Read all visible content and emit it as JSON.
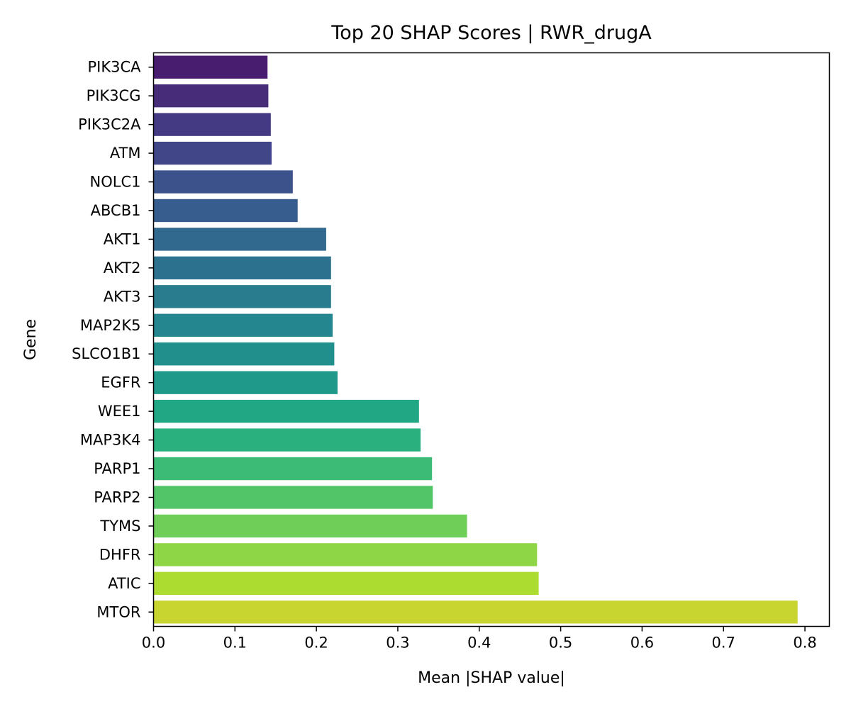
{
  "chart_data": {
    "type": "bar",
    "orientation": "horizontal",
    "title": "Top 20 SHAP Scores | RWR_drugA",
    "xlabel": "Mean |SHAP value|",
    "ylabel": "Gene",
    "xlim": [
      0,
      0.83
    ],
    "xticks": [
      0.0,
      0.1,
      0.2,
      0.3,
      0.4,
      0.5,
      0.6,
      0.7,
      0.8
    ],
    "xtick_labels": [
      "0.0",
      "0.1",
      "0.2",
      "0.3",
      "0.4",
      "0.5",
      "0.6",
      "0.7",
      "0.8"
    ],
    "grid": false,
    "categories": [
      "PIK3CA",
      "PIK3CG",
      "PIK3C2A",
      "ATM",
      "NOLC1",
      "ABCB1",
      "AKT1",
      "AKT2",
      "AKT3",
      "MAP2K5",
      "SLCO1B1",
      "EGFR",
      "WEE1",
      "MAP3K4",
      "PARP1",
      "PARP2",
      "TYMS",
      "DHFR",
      "ATIC",
      "MTOR"
    ],
    "values": [
      0.14,
      0.141,
      0.144,
      0.145,
      0.171,
      0.177,
      0.212,
      0.218,
      0.218,
      0.22,
      0.222,
      0.226,
      0.326,
      0.328,
      0.342,
      0.343,
      0.385,
      0.471,
      0.473,
      0.791
    ],
    "colors": [
      "#481c6e",
      "#472c7a",
      "#443983",
      "#404688",
      "#3b528b",
      "#365d8d",
      "#31688e",
      "#2c728e",
      "#287c8e",
      "#24868e",
      "#21908d",
      "#1f9a8a",
      "#22a785",
      "#2ab07f",
      "#3bbb75",
      "#52c569",
      "#6ece58",
      "#8ed645",
      "#addc30",
      "#c8d531"
    ],
    "colormap": "viridis"
  }
}
